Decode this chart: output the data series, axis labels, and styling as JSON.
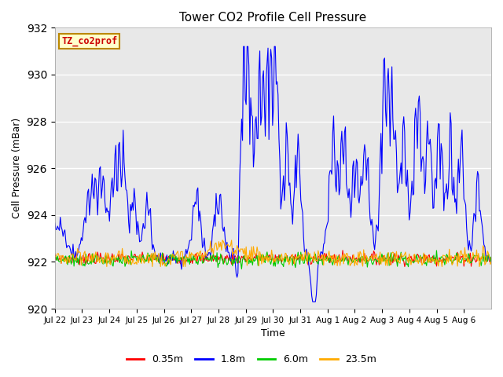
{
  "title": "Tower CO2 Profile Cell Pressure",
  "xlabel": "Time",
  "ylabel": "Cell Pressure (mBar)",
  "ylim": [
    920,
    932
  ],
  "xlim": [
    0,
    16
  ],
  "label_text": "TZ_co2prof",
  "label_color": "#cc0000",
  "label_bg": "#ffffcc",
  "label_border": "#bb8800",
  "bg_color": "#e8e8e8",
  "fig_bg": "#ffffff",
  "series_colors": {
    "0.35m": "#ff0000",
    "1.8m": "#0000ff",
    "6.0m": "#00cc00",
    "23.5m": "#ffaa00"
  },
  "series_lw": 0.8,
  "tick_labels": [
    "Jul 22",
    "Jul 23",
    "Jul 24",
    "Jul 25",
    "Jul 26",
    "Jul 27",
    "Jul 28",
    "Jul 29",
    "Jul 30",
    "Jul 31",
    "Aug 1",
    "Aug 2",
    "Aug 3",
    "Aug 4",
    "Aug 5",
    "Aug 6"
  ],
  "yticks": [
    920,
    922,
    924,
    926,
    928,
    930,
    932
  ],
  "n_points": 480,
  "seed": 7
}
